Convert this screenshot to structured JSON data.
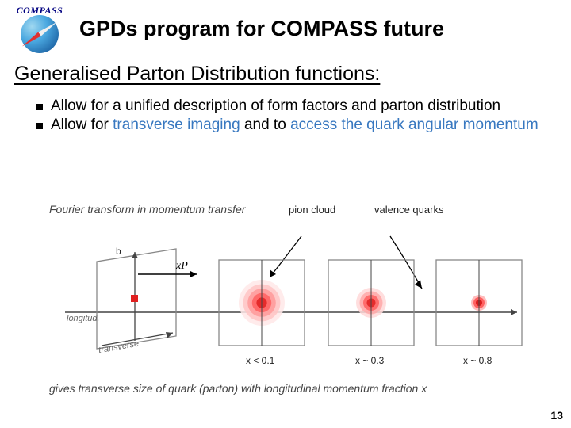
{
  "header": {
    "logo_label": "COMPASS",
    "title": "GPDs program for COMPASS future"
  },
  "subtitle": "Generalised Parton Distribution functions:",
  "bullets": [
    {
      "pre": "Allow for a unified description of form factors and parton distribution"
    },
    {
      "pre": "Allow for ",
      "hl1": "transverse imaging",
      "mid": " and to ",
      "hl2": "access the quark angular momentum"
    }
  ],
  "figure": {
    "title": "Fourier transform in momentum transfer",
    "callouts": {
      "pion": "pion\ncloud",
      "valence": "valence\nquarks"
    },
    "panel3d": {
      "b_label": "b",
      "xP_label": "xP",
      "longitudinal": "longitud.",
      "transverse": "transverse"
    },
    "panels": [
      {
        "x_label": "x < 0.1",
        "radius": 28,
        "colors": [
          "#ffe8e8",
          "#ffc4c4",
          "#ff9a9a",
          "#ff6060",
          "#e02020"
        ]
      },
      {
        "x_label": "x ~ 0.3",
        "radius": 18,
        "colors": [
          "#ffd8d8",
          "#ffa8a8",
          "#ff6060",
          "#e02020"
        ]
      },
      {
        "x_label": "x ~ 0.8",
        "radius": 9,
        "colors": [
          "#ffb0b0",
          "#ff5050",
          "#d01010"
        ]
      }
    ],
    "caption": "gives transverse size of quark (parton) with longitudinal momentum fraction x",
    "frame_color": "#888",
    "axis_color": "#444"
  },
  "pagenum": "13"
}
